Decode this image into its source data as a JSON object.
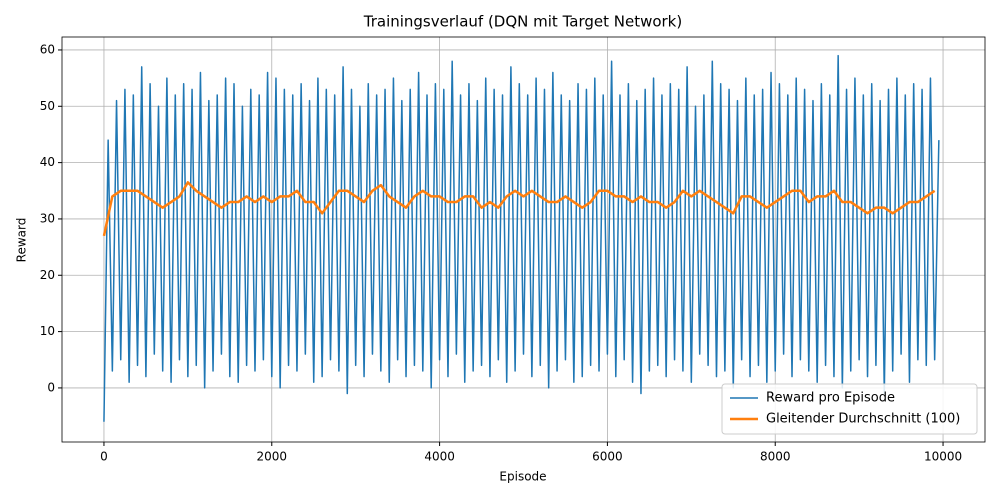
{
  "chart_data": {
    "type": "line",
    "title": "Trainingsverlauf (DQN mit Target Network)",
    "x_label": "Episode",
    "y_label": "Reward",
    "xlim": [
      -500,
      10500
    ],
    "ylim": [
      -9.6,
      62.3
    ],
    "xticks": [
      0,
      2000,
      4000,
      6000,
      8000,
      10000
    ],
    "yticks": [
      0,
      10,
      20,
      30,
      40,
      50,
      60
    ],
    "grid": true,
    "legend": "lower right",
    "series": [
      {
        "name": "Reward pro Episode",
        "color": "#1f77b4",
        "width": 1.5,
        "x": [
          0,
          50,
          100,
          150,
          200,
          250,
          300,
          350,
          400,
          450,
          500,
          550,
          600,
          650,
          700,
          750,
          800,
          850,
          900,
          950,
          1000,
          1050,
          1100,
          1150,
          1200,
          1250,
          1300,
          1350,
          1400,
          1450,
          1500,
          1550,
          1600,
          1650,
          1700,
          1750,
          1800,
          1850,
          1900,
          1950,
          2000,
          2050,
          2100,
          2150,
          2200,
          2250,
          2300,
          2350,
          2400,
          2450,
          2500,
          2550,
          2600,
          2650,
          2700,
          2750,
          2800,
          2850,
          2900,
          2950,
          3000,
          3050,
          3100,
          3150,
          3200,
          3250,
          3300,
          3350,
          3400,
          3450,
          3500,
          3550,
          3600,
          3650,
          3700,
          3750,
          3800,
          3850,
          3900,
          3950,
          4000,
          4050,
          4100,
          4150,
          4200,
          4250,
          4300,
          4350,
          4400,
          4450,
          4500,
          4550,
          4600,
          4650,
          4700,
          4750,
          4800,
          4850,
          4900,
          4950,
          5000,
          5050,
          5100,
          5150,
          5200,
          5250,
          5300,
          5350,
          5400,
          5450,
          5500,
          5550,
          5600,
          5650,
          5700,
          5750,
          5800,
          5850,
          5900,
          5950,
          6000,
          6050,
          6100,
          6150,
          6200,
          6250,
          6300,
          6350,
          6400,
          6450,
          6500,
          6550,
          6600,
          6650,
          6700,
          6750,
          6800,
          6850,
          6900,
          6950,
          7000,
          7050,
          7100,
          7150,
          7200,
          7250,
          7300,
          7350,
          7400,
          7450,
          7500,
          7550,
          7600,
          7650,
          7700,
          7750,
          7800,
          7850,
          7900,
          7950,
          8000,
          8050,
          8100,
          8150,
          8200,
          8250,
          8300,
          8350,
          8400,
          8450,
          8500,
          8550,
          8600,
          8650,
          8700,
          8750,
          8800,
          8850,
          8900,
          8950,
          9000,
          9050,
          9100,
          9150,
          9200,
          9250,
          9300,
          9350,
          9400,
          9450,
          9500,
          9550,
          9600,
          9650,
          9700,
          9750,
          9800,
          9850,
          9900,
          9950
        ],
        "values": [
          -6,
          44,
          3,
          51,
          5,
          53,
          1,
          52,
          4,
          57,
          2,
          54,
          6,
          50,
          3,
          55,
          1,
          52,
          5,
          54,
          2,
          53,
          4,
          56,
          0,
          51,
          3,
          52,
          6,
          55,
          2,
          54,
          1,
          50,
          4,
          53,
          3,
          52,
          5,
          56,
          2,
          55,
          0,
          53,
          4,
          52,
          3,
          54,
          6,
          51,
          1,
          55,
          2,
          53,
          5,
          52,
          3,
          57,
          -1,
          53,
          4,
          50,
          2,
          54,
          6,
          52,
          3,
          53,
          1,
          55,
          5,
          51,
          2,
          53,
          4,
          56,
          3,
          52,
          0,
          54,
          5,
          53,
          2,
          58,
          6,
          52,
          1,
          54,
          3,
          51,
          4,
          55,
          2,
          53,
          5,
          52,
          1,
          57,
          3,
          54,
          6,
          52,
          2,
          55,
          4,
          53,
          0,
          56,
          3,
          52,
          5,
          51,
          1,
          54,
          2,
          53,
          4,
          55,
          3,
          52,
          6,
          58,
          2,
          52,
          5,
          54,
          1,
          51,
          -1,
          53,
          3,
          55,
          4,
          52,
          2,
          54,
          5,
          53,
          3,
          57,
          1,
          50,
          6,
          52,
          4,
          58,
          2,
          54,
          3,
          53,
          0,
          51,
          5,
          55,
          2,
          52,
          4,
          53,
          1,
          56,
          3,
          54,
          6,
          52,
          2,
          55,
          5,
          53,
          3,
          51,
          1,
          54,
          4,
          52,
          2,
          59,
          0,
          53,
          3,
          55,
          5,
          52,
          2,
          54,
          4,
          51,
          -1,
          53,
          3,
          55,
          6,
          52,
          1,
          54,
          5,
          53,
          4,
          55,
          5,
          44
        ]
      },
      {
        "name": "Gleitender Durchschnitt (100)",
        "color": "#ff7f0e",
        "width": 2.5,
        "x": [
          0,
          100,
          200,
          300,
          400,
          500,
          600,
          700,
          800,
          900,
          1000,
          1100,
          1200,
          1300,
          1400,
          1500,
          1600,
          1700,
          1800,
          1900,
          2000,
          2100,
          2200,
          2300,
          2400,
          2500,
          2600,
          2700,
          2800,
          2900,
          3000,
          3100,
          3200,
          3300,
          3400,
          3500,
          3600,
          3700,
          3800,
          3900,
          4000,
          4100,
          4200,
          4300,
          4400,
          4500,
          4600,
          4700,
          4800,
          4900,
          5000,
          5100,
          5200,
          5300,
          5400,
          5500,
          5600,
          5700,
          5800,
          5900,
          6000,
          6100,
          6200,
          6300,
          6400,
          6500,
          6600,
          6700,
          6800,
          6900,
          7000,
          7100,
          7200,
          7300,
          7400,
          7500,
          7600,
          7700,
          7800,
          7900,
          8000,
          8100,
          8200,
          8300,
          8400,
          8500,
          8600,
          8700,
          8800,
          8900,
          9000,
          9100,
          9200,
          9300,
          9400,
          9500,
          9600,
          9700,
          9800,
          9900
        ],
        "values": [
          27,
          34,
          35,
          35,
          35,
          34,
          33,
          32,
          33,
          34,
          36.5,
          35,
          34,
          33,
          32,
          33,
          33,
          34,
          33,
          34,
          33,
          34,
          34,
          35,
          33,
          33,
          31,
          33,
          35,
          35,
          34,
          33,
          35,
          36,
          34,
          33,
          32,
          34,
          35,
          34,
          34,
          33,
          33,
          34,
          34,
          32,
          33,
          32,
          34,
          35,
          34,
          35,
          34,
          33,
          33,
          34,
          33,
          32,
          33,
          35,
          35,
          34,
          34,
          33,
          34,
          33,
          33,
          32,
          33,
          35,
          34,
          35,
          34,
          33,
          32,
          31,
          34,
          34,
          33,
          32,
          33,
          34,
          35,
          35,
          33,
          34,
          34,
          35,
          33,
          33,
          32,
          31,
          32,
          32,
          31,
          32,
          33,
          33,
          34,
          35
        ]
      }
    ]
  }
}
